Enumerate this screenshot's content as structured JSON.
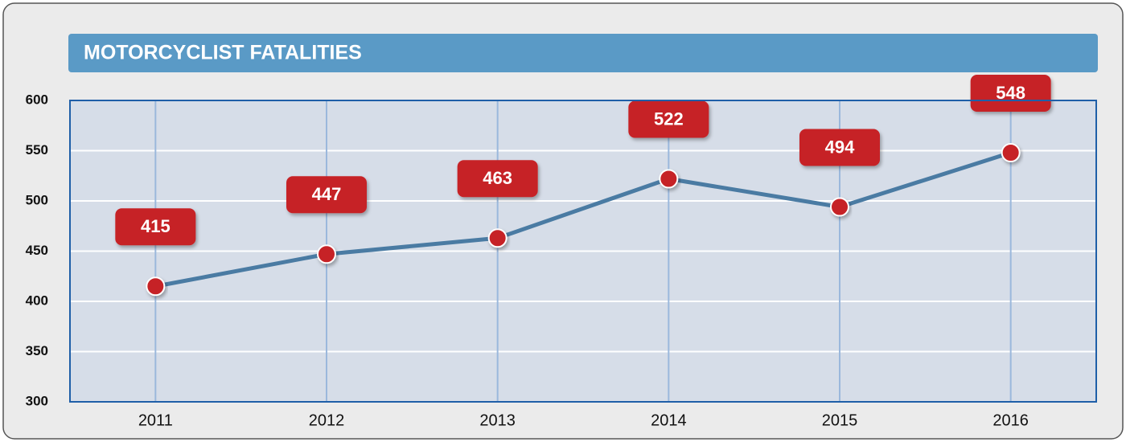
{
  "chart_data": {
    "type": "line",
    "title": "MOTORCYCLIST FATALITIES",
    "categories": [
      "2011",
      "2012",
      "2013",
      "2014",
      "2015",
      "2016"
    ],
    "values": [
      415,
      447,
      463,
      522,
      494,
      548
    ],
    "color": "#4a7ba3",
    "marker_color": "#c62026",
    "ylim": [
      300,
      600
    ],
    "yticks": [
      300,
      350,
      400,
      450,
      500,
      550,
      600
    ],
    "grid": true
  }
}
